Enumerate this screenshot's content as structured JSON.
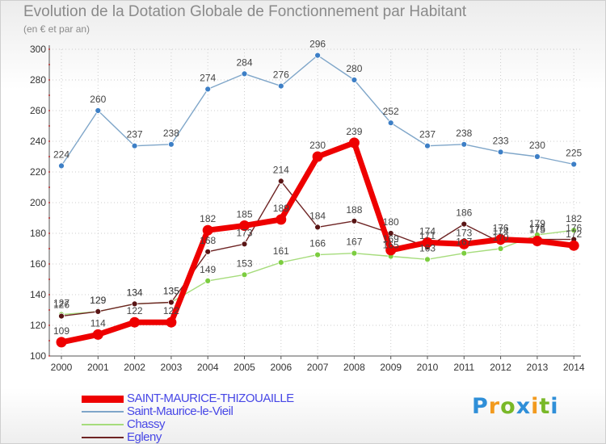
{
  "header": {
    "title": "Evolution de la Dotation Globale de Fonctionnement par Habitant",
    "subtitle": "(en € et par an)"
  },
  "brand": {
    "logo_text": "Proxiti"
  },
  "colors": {
    "saint_maurice_thizouaille": "#ee0000",
    "saint_maurice_le_vieil": "#7fa6c9",
    "chassy": "#a6dc7c",
    "egleny": "#6e2424",
    "grid": "#cccccc",
    "axis": "#555555",
    "legend_text": "#4747e6"
  },
  "chart_data": {
    "type": "line",
    "title": "Evolution de la Dotation Globale de Fonctionnement par Habitant",
    "subtitle": "(en € et par an)",
    "xlabel": "",
    "ylabel": "",
    "ylim": [
      100,
      300
    ],
    "yticks": [
      100,
      120,
      140,
      160,
      180,
      200,
      220,
      240,
      260,
      280,
      300
    ],
    "x": [
      2000,
      2001,
      2002,
      2003,
      2004,
      2005,
      2006,
      2007,
      2008,
      2009,
      2010,
      2011,
      2012,
      2013,
      2014
    ],
    "grid": true,
    "legend_position": "bottom-left",
    "series": [
      {
        "name": "Saint-Maurice-le-Vieil",
        "color": "#7fa6c9",
        "marker": "#3d7fc6",
        "width": 1.4,
        "radius": 3.5,
        "values": [
          224,
          260,
          237,
          238,
          274,
          284,
          276,
          296,
          280,
          252,
          237,
          238,
          233,
          230,
          225
        ]
      },
      {
        "name": "Chassy",
        "color": "#a6dc7c",
        "marker": "#7ccd40",
        "width": 1.4,
        "radius": 3.5,
        "values": [
          127,
          129,
          134,
          135,
          149,
          153,
          161,
          166,
          167,
          165,
          163,
          167,
          170,
          179,
          182
        ]
      },
      {
        "name": "Egleny",
        "color": "#6e2424",
        "marker": "#5a1515",
        "width": 1.4,
        "radius": 3.5,
        "values": [
          126,
          129,
          134,
          135,
          168,
          173,
          214,
          184,
          188,
          180,
          171,
          186,
          174,
          176,
          176
        ]
      },
      {
        "name": "SAINT-MAURICE-THIZOUAILLE",
        "color": "#ee0000",
        "marker": "#ee0000",
        "width": 7,
        "radius": 6.5,
        "values": [
          109,
          114,
          122,
          122,
          182,
          185,
          189,
          230,
          239,
          169,
          174,
          173,
          176,
          175,
          172
        ]
      }
    ]
  }
}
